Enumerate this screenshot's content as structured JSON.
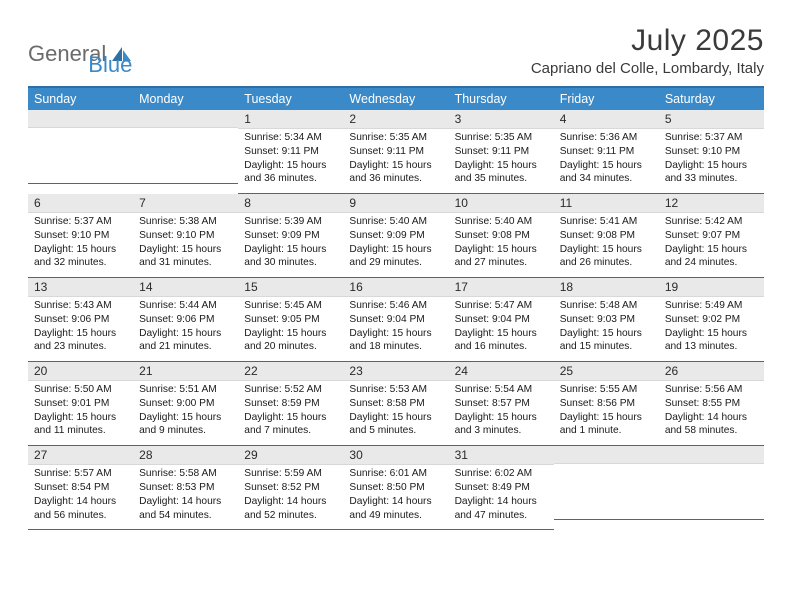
{
  "brand": {
    "part1": "General",
    "part2": "Blue"
  },
  "title": "July 2025",
  "location": "Capriano del Colle, Lombardy, Italy",
  "colors": {
    "header_bg": "#3a8ac9",
    "header_border": "#2f6fa3",
    "daynum_bg": "#e9e9e9",
    "text": "#1a1a1a",
    "logo_gray": "#6b6b6b",
    "logo_blue": "#3a8ac9"
  },
  "day_labels": [
    "Sunday",
    "Monday",
    "Tuesday",
    "Wednesday",
    "Thursday",
    "Friday",
    "Saturday"
  ],
  "weeks": [
    [
      {
        "n": "",
        "sr": "",
        "ss": "",
        "dl": ""
      },
      {
        "n": "",
        "sr": "",
        "ss": "",
        "dl": ""
      },
      {
        "n": "1",
        "sr": "Sunrise: 5:34 AM",
        "ss": "Sunset: 9:11 PM",
        "dl": "Daylight: 15 hours and 36 minutes."
      },
      {
        "n": "2",
        "sr": "Sunrise: 5:35 AM",
        "ss": "Sunset: 9:11 PM",
        "dl": "Daylight: 15 hours and 36 minutes."
      },
      {
        "n": "3",
        "sr": "Sunrise: 5:35 AM",
        "ss": "Sunset: 9:11 PM",
        "dl": "Daylight: 15 hours and 35 minutes."
      },
      {
        "n": "4",
        "sr": "Sunrise: 5:36 AM",
        "ss": "Sunset: 9:11 PM",
        "dl": "Daylight: 15 hours and 34 minutes."
      },
      {
        "n": "5",
        "sr": "Sunrise: 5:37 AM",
        "ss": "Sunset: 9:10 PM",
        "dl": "Daylight: 15 hours and 33 minutes."
      }
    ],
    [
      {
        "n": "6",
        "sr": "Sunrise: 5:37 AM",
        "ss": "Sunset: 9:10 PM",
        "dl": "Daylight: 15 hours and 32 minutes."
      },
      {
        "n": "7",
        "sr": "Sunrise: 5:38 AM",
        "ss": "Sunset: 9:10 PM",
        "dl": "Daylight: 15 hours and 31 minutes."
      },
      {
        "n": "8",
        "sr": "Sunrise: 5:39 AM",
        "ss": "Sunset: 9:09 PM",
        "dl": "Daylight: 15 hours and 30 minutes."
      },
      {
        "n": "9",
        "sr": "Sunrise: 5:40 AM",
        "ss": "Sunset: 9:09 PM",
        "dl": "Daylight: 15 hours and 29 minutes."
      },
      {
        "n": "10",
        "sr": "Sunrise: 5:40 AM",
        "ss": "Sunset: 9:08 PM",
        "dl": "Daylight: 15 hours and 27 minutes."
      },
      {
        "n": "11",
        "sr": "Sunrise: 5:41 AM",
        "ss": "Sunset: 9:08 PM",
        "dl": "Daylight: 15 hours and 26 minutes."
      },
      {
        "n": "12",
        "sr": "Sunrise: 5:42 AM",
        "ss": "Sunset: 9:07 PM",
        "dl": "Daylight: 15 hours and 24 minutes."
      }
    ],
    [
      {
        "n": "13",
        "sr": "Sunrise: 5:43 AM",
        "ss": "Sunset: 9:06 PM",
        "dl": "Daylight: 15 hours and 23 minutes."
      },
      {
        "n": "14",
        "sr": "Sunrise: 5:44 AM",
        "ss": "Sunset: 9:06 PM",
        "dl": "Daylight: 15 hours and 21 minutes."
      },
      {
        "n": "15",
        "sr": "Sunrise: 5:45 AM",
        "ss": "Sunset: 9:05 PM",
        "dl": "Daylight: 15 hours and 20 minutes."
      },
      {
        "n": "16",
        "sr": "Sunrise: 5:46 AM",
        "ss": "Sunset: 9:04 PM",
        "dl": "Daylight: 15 hours and 18 minutes."
      },
      {
        "n": "17",
        "sr": "Sunrise: 5:47 AM",
        "ss": "Sunset: 9:04 PM",
        "dl": "Daylight: 15 hours and 16 minutes."
      },
      {
        "n": "18",
        "sr": "Sunrise: 5:48 AM",
        "ss": "Sunset: 9:03 PM",
        "dl": "Daylight: 15 hours and 15 minutes."
      },
      {
        "n": "19",
        "sr": "Sunrise: 5:49 AM",
        "ss": "Sunset: 9:02 PM",
        "dl": "Daylight: 15 hours and 13 minutes."
      }
    ],
    [
      {
        "n": "20",
        "sr": "Sunrise: 5:50 AM",
        "ss": "Sunset: 9:01 PM",
        "dl": "Daylight: 15 hours and 11 minutes."
      },
      {
        "n": "21",
        "sr": "Sunrise: 5:51 AM",
        "ss": "Sunset: 9:00 PM",
        "dl": "Daylight: 15 hours and 9 minutes."
      },
      {
        "n": "22",
        "sr": "Sunrise: 5:52 AM",
        "ss": "Sunset: 8:59 PM",
        "dl": "Daylight: 15 hours and 7 minutes."
      },
      {
        "n": "23",
        "sr": "Sunrise: 5:53 AM",
        "ss": "Sunset: 8:58 PM",
        "dl": "Daylight: 15 hours and 5 minutes."
      },
      {
        "n": "24",
        "sr": "Sunrise: 5:54 AM",
        "ss": "Sunset: 8:57 PM",
        "dl": "Daylight: 15 hours and 3 minutes."
      },
      {
        "n": "25",
        "sr": "Sunrise: 5:55 AM",
        "ss": "Sunset: 8:56 PM",
        "dl": "Daylight: 15 hours and 1 minute."
      },
      {
        "n": "26",
        "sr": "Sunrise: 5:56 AM",
        "ss": "Sunset: 8:55 PM",
        "dl": "Daylight: 14 hours and 58 minutes."
      }
    ],
    [
      {
        "n": "27",
        "sr": "Sunrise: 5:57 AM",
        "ss": "Sunset: 8:54 PM",
        "dl": "Daylight: 14 hours and 56 minutes."
      },
      {
        "n": "28",
        "sr": "Sunrise: 5:58 AM",
        "ss": "Sunset: 8:53 PM",
        "dl": "Daylight: 14 hours and 54 minutes."
      },
      {
        "n": "29",
        "sr": "Sunrise: 5:59 AM",
        "ss": "Sunset: 8:52 PM",
        "dl": "Daylight: 14 hours and 52 minutes."
      },
      {
        "n": "30",
        "sr": "Sunrise: 6:01 AM",
        "ss": "Sunset: 8:50 PM",
        "dl": "Daylight: 14 hours and 49 minutes."
      },
      {
        "n": "31",
        "sr": "Sunrise: 6:02 AM",
        "ss": "Sunset: 8:49 PM",
        "dl": "Daylight: 14 hours and 47 minutes."
      },
      {
        "n": "",
        "sr": "",
        "ss": "",
        "dl": ""
      },
      {
        "n": "",
        "sr": "",
        "ss": "",
        "dl": ""
      }
    ]
  ]
}
